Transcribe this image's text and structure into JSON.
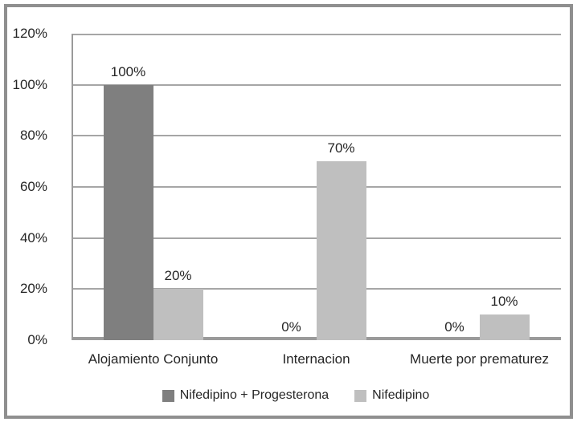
{
  "chart_data": {
    "type": "bar",
    "title": "",
    "xlabel": "",
    "ylabel": "",
    "categories": [
      "Alojamiento Conjunto",
      "Internacion",
      "Muerte por prematurez"
    ],
    "series": [
      {
        "name": "Nifedipino + Progesterona",
        "color": "#7f7f7f",
        "values": [
          100,
          0,
          0
        ]
      },
      {
        "name": "Nifedipino",
        "color": "#bfbfbf",
        "values": [
          20,
          70,
          10
        ]
      }
    ],
    "data_labels": [
      [
        "100%",
        "0%",
        "0%"
      ],
      [
        "20%",
        "70%",
        "10%"
      ]
    ],
    "y_ticks": [
      "120%",
      "100%",
      "80%",
      "60%",
      "40%",
      "20%",
      "0%"
    ],
    "ylim": [
      0,
      120
    ],
    "grid": true,
    "legend_position": "bottom"
  },
  "colors": {
    "background": "#ffffff",
    "frame_border": "#8f8f8f",
    "gridline": "#a6a6a6",
    "axis": "#9a9a9a",
    "text": "#262626"
  }
}
